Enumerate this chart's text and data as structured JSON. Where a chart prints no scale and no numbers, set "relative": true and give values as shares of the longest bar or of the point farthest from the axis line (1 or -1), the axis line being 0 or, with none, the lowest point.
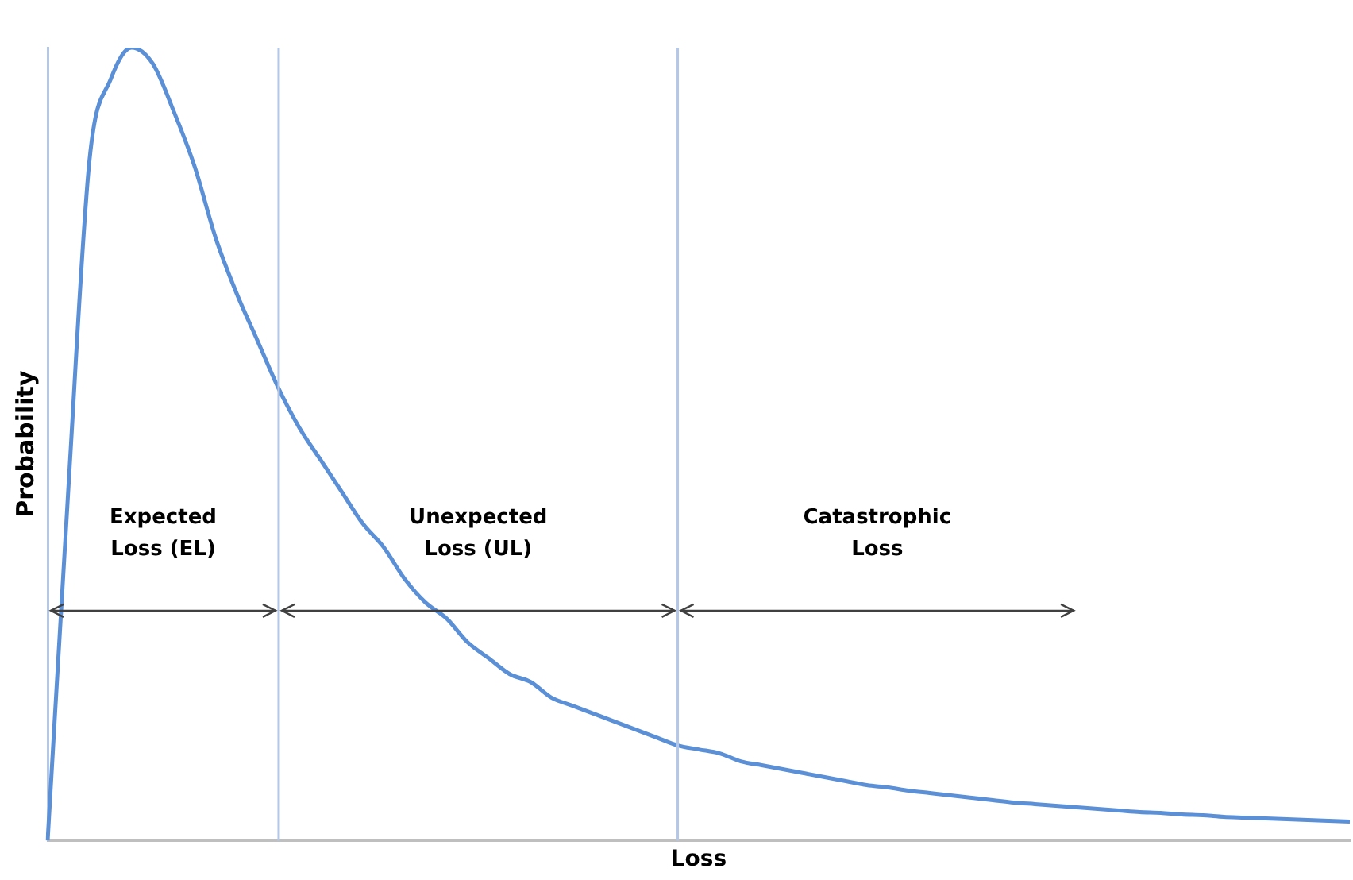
{
  "chart_data": {
    "type": "line",
    "relative": true,
    "xlabel": "Loss",
    "ylabel": "Probability",
    "categories": [
      null,
      null,
      null,
      null,
      null,
      null,
      null,
      null,
      null,
      null,
      null,
      null,
      null,
      null,
      null,
      null,
      null,
      null,
      null,
      null,
      null,
      null,
      null,
      null,
      null,
      null,
      null,
      null,
      null,
      null,
      null,
      null,
      null,
      null,
      null,
      null,
      null,
      null,
      null,
      null,
      null,
      null,
      null,
      null,
      null,
      null,
      null,
      null,
      null,
      null,
      null,
      null,
      null,
      null,
      null,
      null,
      null,
      null,
      null,
      null,
      null,
      null,
      null
    ],
    "series": [
      {
        "color": "#5b8fd6",
        "values": [
          0,
          0.45,
          0.86,
          0.96,
          1,
          0.98,
          0.92,
          0.85,
          0.76,
          0.69,
          0.63,
          0.57,
          0.52,
          0.48,
          0.44,
          0.4,
          0.37,
          0.33,
          0.3,
          0.28,
          0.25,
          0.23,
          0.21,
          0.2,
          0.18,
          0.17,
          0.16,
          0.15,
          0.14,
          0.13,
          0.12,
          0.115,
          0.11,
          0.1,
          0.095,
          0.09,
          0.085,
          0.08,
          0.075,
          0.07,
          0.067,
          0.063,
          0.06,
          0.057,
          0.054,
          0.051,
          0.048,
          0.046,
          0.044,
          0.042,
          0.04,
          0.038,
          0.036,
          0.035,
          0.033,
          0.032,
          0.03,
          0.029,
          0.028,
          0.027,
          0.026,
          0.025,
          0.024
        ]
      }
    ],
    "annotations": [
      "Expected Loss (EL)",
      "Unexpected Loss (UL)",
      "Catastrophic Loss"
    ],
    "grid": false,
    "legend": false,
    "marker": "none",
    "line_style": "solid",
    "tick_labels": false
  }
}
